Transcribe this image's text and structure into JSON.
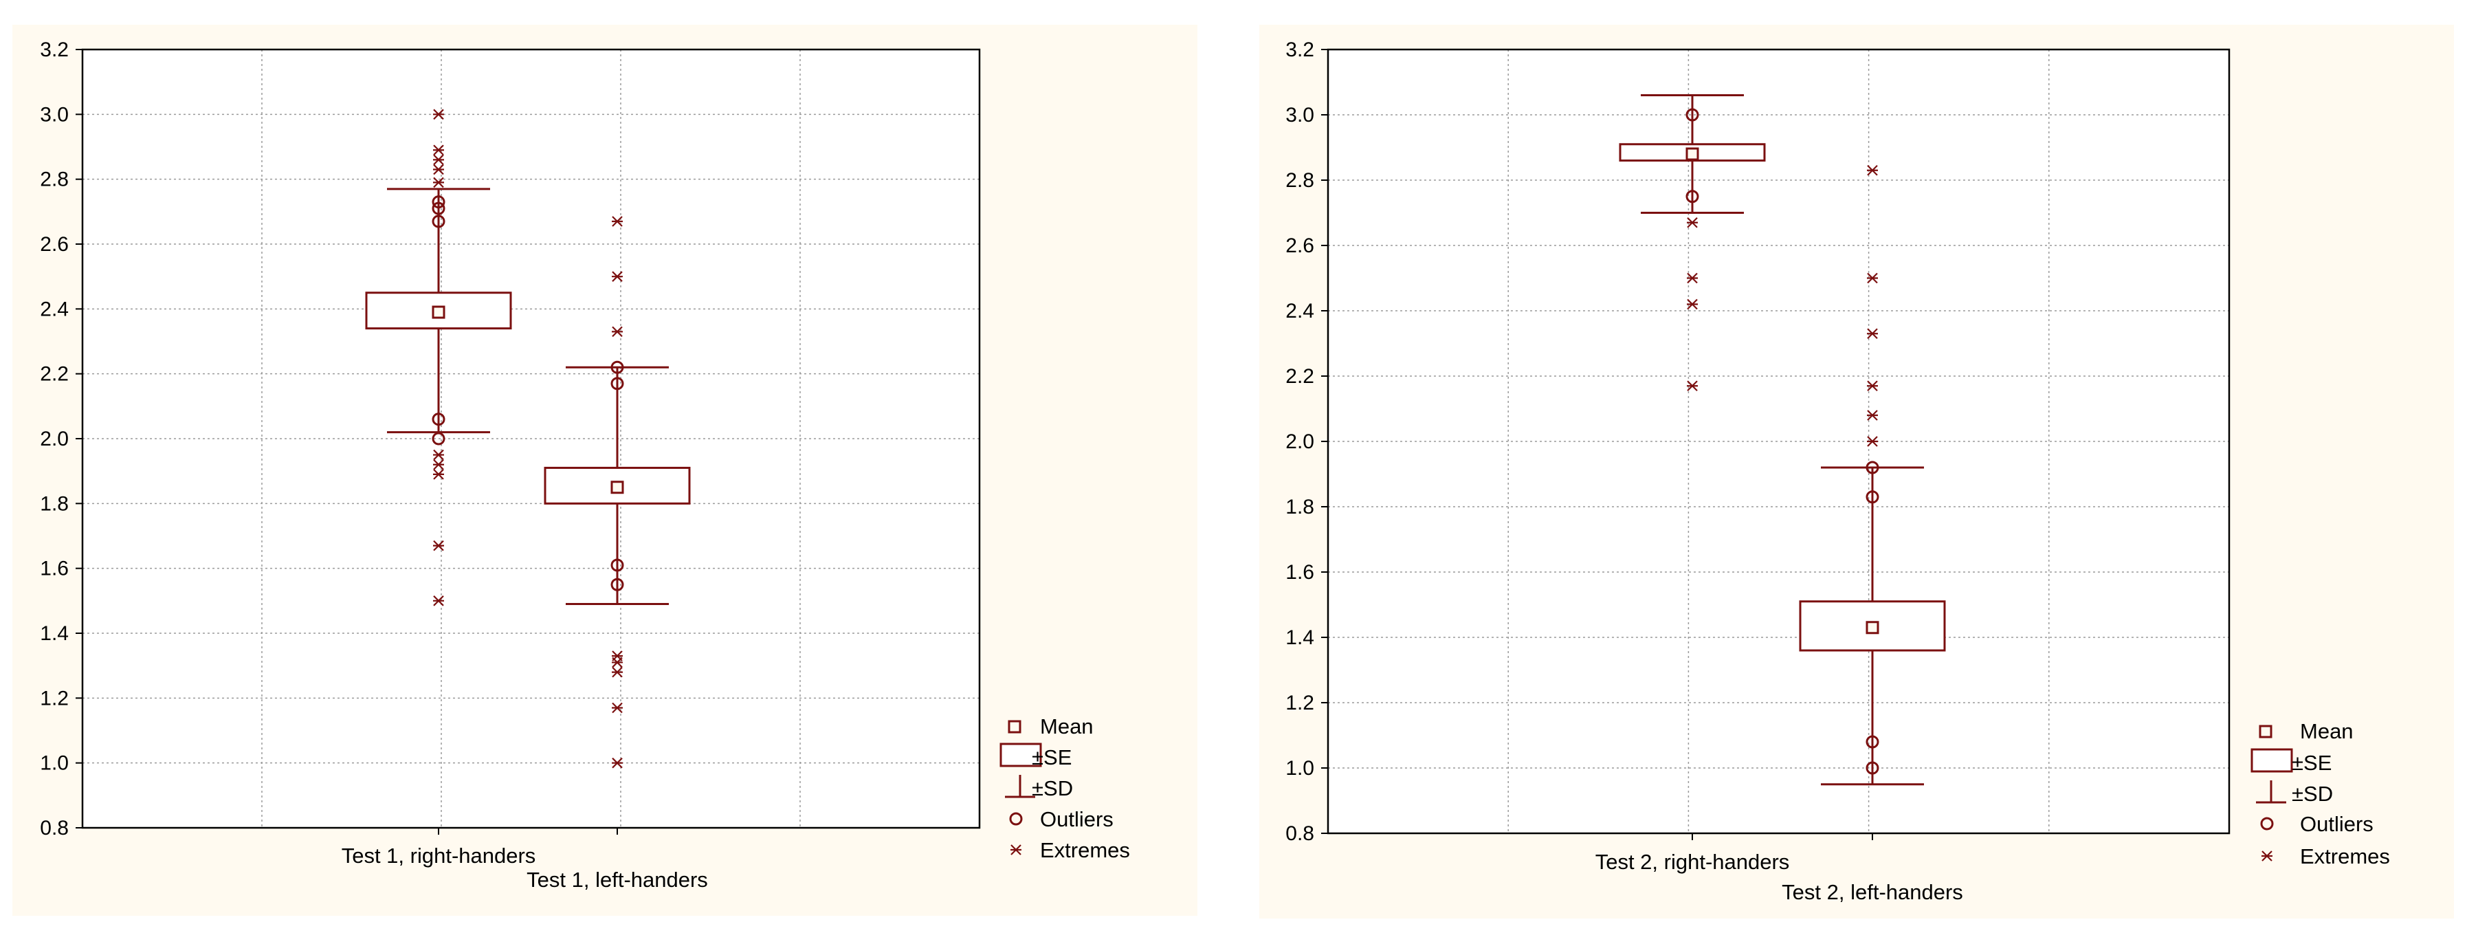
{
  "colors": {
    "marks": "#7b1010",
    "panel_bg": "#fffaf0",
    "grid": "#9a9a9a",
    "axis": "#000000"
  },
  "legend": {
    "mean": "Mean",
    "se": "±SE",
    "sd": "±SD",
    "outliers": "Outliers",
    "extremes": "Extremes"
  },
  "chart_data": [
    {
      "type": "box",
      "ylim": [
        0.8,
        3.2
      ],
      "yticks": [
        "0.8",
        "1.0",
        "1.2",
        "1.4",
        "1.6",
        "1.8",
        "2.0",
        "2.2",
        "2.4",
        "2.6",
        "2.8",
        "3.0",
        "3.2"
      ],
      "grid": true,
      "legend_position": "right",
      "categories": [
        "Test 1, right-handers",
        "Test 1, left-handers"
      ],
      "groups": [
        {
          "mean": 2.39,
          "se": [
            2.34,
            2.45
          ],
          "sd": [
            2.02,
            2.77
          ],
          "outliers": [
            2.06,
            2.0,
            2.67,
            2.71,
            2.73
          ],
          "extremes": [
            1.5,
            1.67,
            1.89,
            1.92,
            1.95,
            2.79,
            2.83,
            2.86,
            2.89,
            3.0
          ]
        },
        {
          "mean": 1.85,
          "se": [
            1.8,
            1.91
          ],
          "sd": [
            1.49,
            2.22
          ],
          "outliers": [
            1.55,
            1.61,
            2.17,
            2.22
          ],
          "extremes": [
            1.0,
            1.17,
            1.28,
            1.31,
            1.33,
            2.33,
            2.5,
            2.67
          ]
        }
      ]
    },
    {
      "type": "box",
      "ylim": [
        0.8,
        3.2
      ],
      "yticks": [
        "0.8",
        "1.0",
        "1.2",
        "1.4",
        "1.6",
        "1.8",
        "2.0",
        "2.2",
        "2.4",
        "2.6",
        "2.8",
        "3.0",
        "3.2"
      ],
      "grid": true,
      "legend_position": "right",
      "categories": [
        "Test 2, right-handers",
        "Test 2, left-handers"
      ],
      "groups": [
        {
          "mean": 2.88,
          "se": [
            2.86,
            2.91
          ],
          "sd": [
            2.7,
            3.06
          ],
          "outliers": [
            2.75,
            3.0
          ],
          "extremes": [
            2.17,
            2.42,
            2.5,
            2.67
          ]
        },
        {
          "mean": 1.43,
          "se": [
            1.36,
            1.51
          ],
          "sd": [
            0.95,
            1.92
          ],
          "outliers": [
            1.0,
            1.08,
            1.83,
            1.92
          ],
          "extremes": [
            2.0,
            2.08,
            2.17,
            2.33,
            2.5,
            2.83
          ]
        }
      ]
    }
  ]
}
